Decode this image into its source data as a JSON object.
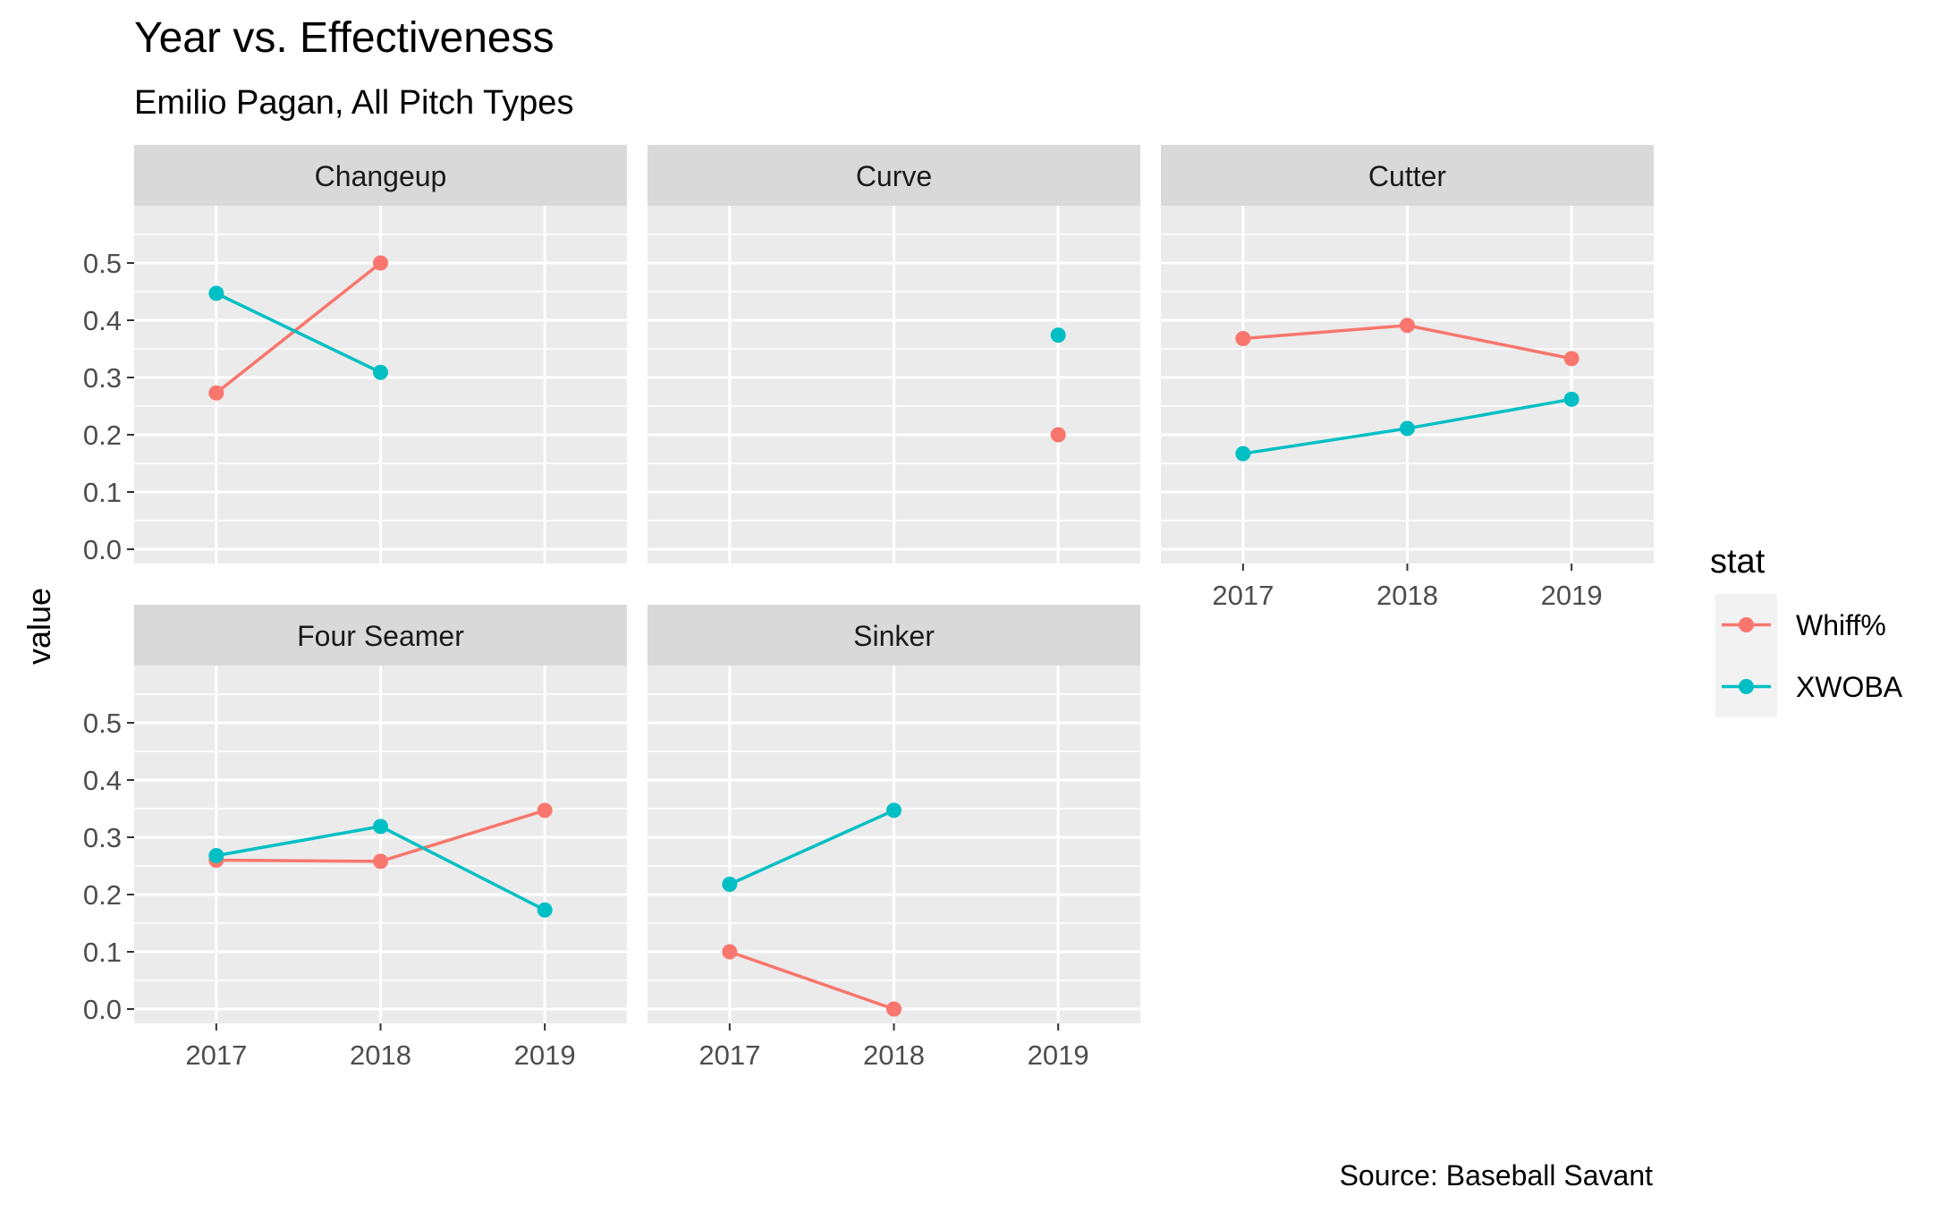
{
  "chart_data": {
    "type": "line",
    "title": "Year vs. Effectiveness",
    "subtitle": "Emilio Pagan, All Pitch Types",
    "caption": "Source: Baseball Savant",
    "ylabel": "value",
    "xlabel": "",
    "x_ticks": [
      "2017",
      "2018",
      "2019"
    ],
    "y_ticks": [
      "0.0",
      "0.1",
      "0.2",
      "0.3",
      "0.4",
      "0.5"
    ],
    "ylim": [
      -0.025,
      0.6
    ],
    "xlim": [
      2016.5,
      2019.5
    ],
    "grid": true,
    "legend": {
      "title": "stat",
      "position": "right",
      "entries": [
        {
          "name": "Whiff%",
          "color": "#F8766D"
        },
        {
          "name": "XWOBA",
          "color": "#00BFC4"
        }
      ]
    },
    "panels": [
      {
        "title": "Changeup",
        "series": [
          {
            "name": "Whiff%",
            "points": [
              {
                "x": 2017,
                "y": 0.273
              },
              {
                "x": 2018,
                "y": 0.5
              }
            ]
          },
          {
            "name": "XWOBA",
            "points": [
              {
                "x": 2017,
                "y": 0.447
              },
              {
                "x": 2018,
                "y": 0.309
              }
            ]
          }
        ]
      },
      {
        "title": "Curve",
        "series": [
          {
            "name": "Whiff%",
            "points": [
              {
                "x": 2019,
                "y": 0.2
              }
            ]
          },
          {
            "name": "XWOBA",
            "points": [
              {
                "x": 2019,
                "y": 0.374
              }
            ]
          }
        ]
      },
      {
        "title": "Cutter",
        "series": [
          {
            "name": "Whiff%",
            "points": [
              {
                "x": 2017,
                "y": 0.368
              },
              {
                "x": 2018,
                "y": 0.391
              },
              {
                "x": 2019,
                "y": 0.333
              }
            ]
          },
          {
            "name": "XWOBA",
            "points": [
              {
                "x": 2017,
                "y": 0.167
              },
              {
                "x": 2018,
                "y": 0.211
              },
              {
                "x": 2019,
                "y": 0.262
              }
            ]
          }
        ]
      },
      {
        "title": "Four Seamer",
        "series": [
          {
            "name": "Whiff%",
            "points": [
              {
                "x": 2017,
                "y": 0.26
              },
              {
                "x": 2018,
                "y": 0.258
              },
              {
                "x": 2019,
                "y": 0.347
              }
            ]
          },
          {
            "name": "XWOBA",
            "points": [
              {
                "x": 2017,
                "y": 0.268
              },
              {
                "x": 2018,
                "y": 0.319
              },
              {
                "x": 2019,
                "y": 0.173
              }
            ]
          }
        ]
      },
      {
        "title": "Sinker",
        "series": [
          {
            "name": "Whiff%",
            "points": [
              {
                "x": 2017,
                "y": 0.1
              },
              {
                "x": 2018,
                "y": 0.0
              }
            ]
          },
          {
            "name": "XWOBA",
            "points": [
              {
                "x": 2017,
                "y": 0.218
              },
              {
                "x": 2018,
                "y": 0.347
              }
            ]
          }
        ]
      }
    ]
  }
}
